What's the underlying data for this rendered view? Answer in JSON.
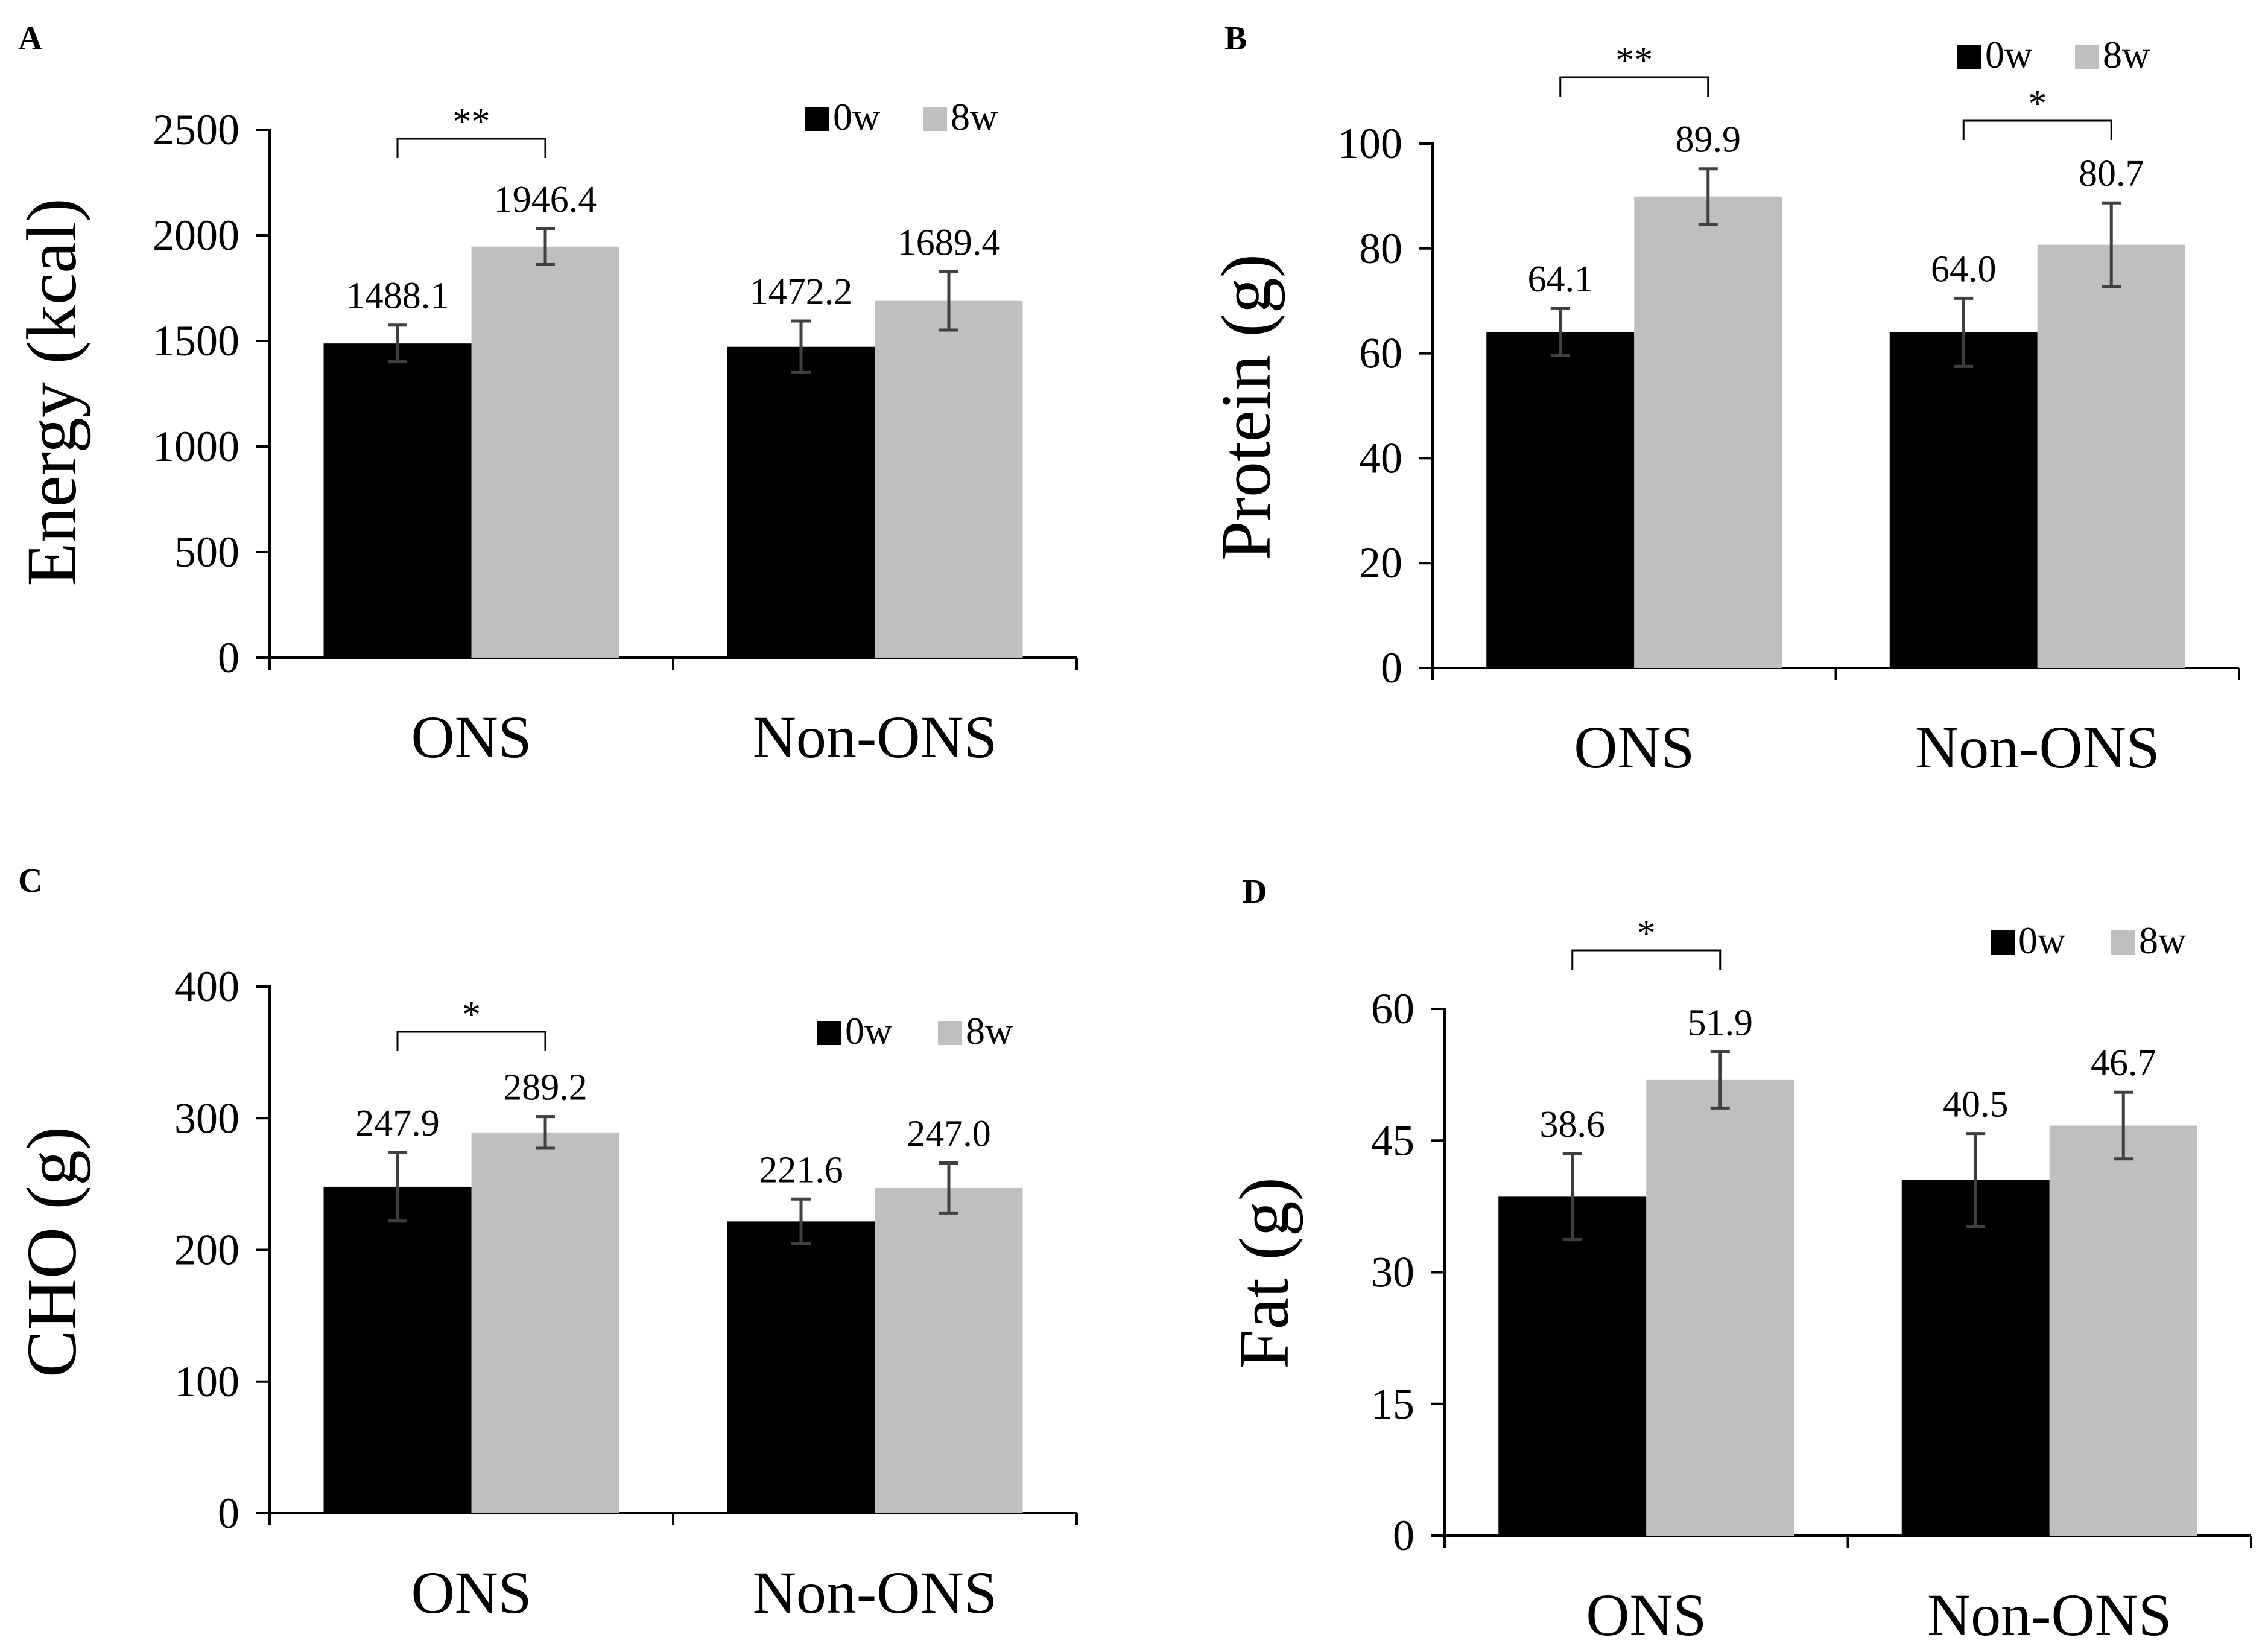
{
  "colors": {
    "bar_0w": "#000000",
    "bar_8w": "#bfbfbf",
    "axis": "#000000",
    "error": "#404040"
  },
  "chart_data": [
    {
      "type": "bar",
      "panel": "A",
      "ylabel": "Energy (kcal)",
      "xlabel": "",
      "categories": [
        "ONS",
        "Non-ONS"
      ],
      "ylim": [
        0,
        2500
      ],
      "yticks": [
        0,
        500,
        1000,
        1500,
        2000,
        2500
      ],
      "legend": "top-right",
      "series": [
        {
          "name": "0w",
          "values": [
            1488.1,
            1472.2
          ],
          "errors": [
            87,
            122
          ],
          "labels": [
            "1488.1",
            "1472.2"
          ]
        },
        {
          "name": "8w",
          "values": [
            1946.4,
            1689.4
          ],
          "errors": [
            85,
            138
          ],
          "labels": [
            "1946.4",
            "1689.4"
          ]
        }
      ],
      "significance": [
        {
          "category": 0,
          "label": "**"
        }
      ]
    },
    {
      "type": "bar",
      "panel": "B",
      "ylabel": "Protein (g)",
      "xlabel": "",
      "categories": [
        "ONS",
        "Non-ONS"
      ],
      "ylim": [
        0,
        100
      ],
      "yticks": [
        0,
        20,
        40,
        60,
        80,
        100
      ],
      "legend": "top-right",
      "series": [
        {
          "name": "0w",
          "values": [
            64.1,
            64.0
          ],
          "errors": [
            4.5,
            6.5
          ],
          "labels": [
            "64.1",
            "64.0"
          ]
        },
        {
          "name": "8w",
          "values": [
            89.9,
            80.7
          ],
          "errors": [
            5.3,
            8.0
          ],
          "labels": [
            "89.9",
            "80.7"
          ]
        }
      ],
      "significance": [
        {
          "category": 0,
          "label": "**"
        },
        {
          "category": 1,
          "label": "*"
        }
      ]
    },
    {
      "type": "bar",
      "panel": "C",
      "ylabel": "CHO (g)",
      "xlabel": "",
      "categories": [
        "ONS",
        "Non-ONS"
      ],
      "ylim": [
        0,
        400
      ],
      "yticks": [
        0,
        100,
        200,
        300,
        400
      ],
      "legend": "top-right",
      "series": [
        {
          "name": "0w",
          "values": [
            247.9,
            221.6
          ],
          "errors": [
            26,
            17
          ],
          "labels": [
            "247.9",
            "221.6"
          ]
        },
        {
          "name": "8w",
          "values": [
            289.2,
            247.0
          ],
          "errors": [
            12,
            19
          ],
          "labels": [
            "289.2",
            "247.0"
          ]
        }
      ],
      "significance": [
        {
          "category": 0,
          "label": "*"
        }
      ]
    },
    {
      "type": "bar",
      "panel": "D",
      "ylabel": "Fat (g)",
      "xlabel": "",
      "categories": [
        "ONS",
        "Non-ONS"
      ],
      "ylim": [
        0,
        60
      ],
      "yticks": [
        0,
        15,
        30,
        45,
        60
      ],
      "legend": "top-right",
      "series": [
        {
          "name": "0w",
          "values": [
            38.6,
            40.5
          ],
          "errors": [
            4.9,
            5.3
          ],
          "labels": [
            "38.6",
            "40.5"
          ]
        },
        {
          "name": "8w",
          "values": [
            51.9,
            46.7
          ],
          "errors": [
            3.2,
            3.8
          ],
          "labels": [
            "51.9",
            "46.7"
          ]
        }
      ],
      "significance": [
        {
          "category": 0,
          "label": "*"
        }
      ]
    }
  ]
}
